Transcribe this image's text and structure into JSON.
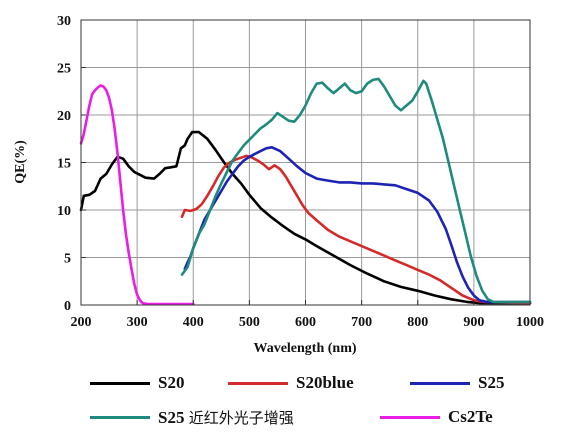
{
  "chart_data": {
    "type": "line",
    "title": "",
    "xlabel": "Wavelength (nm)",
    "ylabel": "QE(%)",
    "xlim": [
      200,
      1000
    ],
    "ylim": [
      0,
      30
    ],
    "x_ticks": [
      "200",
      "300",
      "400",
      "500",
      "600",
      "700",
      "800",
      "900",
      "1000"
    ],
    "y_ticks": [
      "0",
      "5",
      "10",
      "15",
      "20",
      "25",
      "30"
    ],
    "grid": true,
    "legend_position": "bottom",
    "series": [
      {
        "name": "S20",
        "legend_latin": "S20",
        "legend_cjk": "",
        "color": "#000000",
        "points": [
          [
            200,
            10.0
          ],
          [
            205,
            11.5
          ],
          [
            215,
            11.6
          ],
          [
            225,
            12.0
          ],
          [
            235,
            13.3
          ],
          [
            245,
            13.8
          ],
          [
            255,
            14.8
          ],
          [
            265,
            15.6
          ],
          [
            275,
            15.4
          ],
          [
            285,
            14.6
          ],
          [
            295,
            14.0
          ],
          [
            305,
            13.7
          ],
          [
            315,
            13.4
          ],
          [
            330,
            13.3
          ],
          [
            340,
            13.8
          ],
          [
            350,
            14.4
          ],
          [
            360,
            14.5
          ],
          [
            370,
            14.6
          ],
          [
            378,
            16.5
          ],
          [
            385,
            16.8
          ],
          [
            390,
            17.5
          ],
          [
            398,
            18.2
          ],
          [
            410,
            18.2
          ],
          [
            425,
            17.5
          ],
          [
            440,
            16.3
          ],
          [
            455,
            15.0
          ],
          [
            470,
            13.8
          ],
          [
            485,
            12.8
          ],
          [
            500,
            11.6
          ],
          [
            520,
            10.2
          ],
          [
            540,
            9.2
          ],
          [
            560,
            8.3
          ],
          [
            580,
            7.5
          ],
          [
            600,
            6.9
          ],
          [
            620,
            6.2
          ],
          [
            650,
            5.2
          ],
          [
            680,
            4.2
          ],
          [
            710,
            3.3
          ],
          [
            740,
            2.5
          ],
          [
            770,
            1.9
          ],
          [
            800,
            1.5
          ],
          [
            830,
            1.0
          ],
          [
            860,
            0.6
          ],
          [
            890,
            0.3
          ],
          [
            910,
            0.2
          ],
          [
            1000,
            0.2
          ]
        ]
      },
      {
        "name": "S20blue",
        "legend_latin": "S20blue",
        "legend_cjk": "",
        "color": "#d42a2a",
        "points": [
          [
            380,
            9.3
          ],
          [
            385,
            10.0
          ],
          [
            395,
            9.9
          ],
          [
            405,
            10.1
          ],
          [
            415,
            10.6
          ],
          [
            425,
            11.5
          ],
          [
            435,
            12.5
          ],
          [
            445,
            13.6
          ],
          [
            455,
            14.5
          ],
          [
            465,
            15.0
          ],
          [
            475,
            15.3
          ],
          [
            485,
            15.5
          ],
          [
            495,
            15.7
          ],
          [
            505,
            15.5
          ],
          [
            515,
            15.2
          ],
          [
            525,
            14.8
          ],
          [
            535,
            14.3
          ],
          [
            545,
            14.7
          ],
          [
            555,
            14.3
          ],
          [
            565,
            13.5
          ],
          [
            575,
            12.5
          ],
          [
            585,
            11.5
          ],
          [
            595,
            10.5
          ],
          [
            605,
            9.7
          ],
          [
            620,
            8.9
          ],
          [
            640,
            7.9
          ],
          [
            660,
            7.2
          ],
          [
            680,
            6.7
          ],
          [
            700,
            6.2
          ],
          [
            720,
            5.7
          ],
          [
            740,
            5.2
          ],
          [
            760,
            4.7
          ],
          [
            780,
            4.2
          ],
          [
            800,
            3.7
          ],
          [
            820,
            3.2
          ],
          [
            840,
            2.6
          ],
          [
            860,
            1.8
          ],
          [
            880,
            1.0
          ],
          [
            900,
            0.5
          ],
          [
            920,
            0.3
          ],
          [
            1000,
            0.2
          ]
        ]
      },
      {
        "name": "S25",
        "legend_latin": "S25",
        "legend_cjk": "",
        "color": "#1d24b4",
        "points": [
          [
            385,
            3.8
          ],
          [
            390,
            4.5
          ],
          [
            395,
            5.1
          ],
          [
            400,
            6.0
          ],
          [
            410,
            7.5
          ],
          [
            420,
            9.0
          ],
          [
            430,
            10.0
          ],
          [
            440,
            11.0
          ],
          [
            450,
            12.0
          ],
          [
            460,
            13.0
          ],
          [
            470,
            13.8
          ],
          [
            480,
            14.6
          ],
          [
            490,
            15.2
          ],
          [
            500,
            15.6
          ],
          [
            510,
            15.9
          ],
          [
            520,
            16.2
          ],
          [
            530,
            16.5
          ],
          [
            540,
            16.6
          ],
          [
            555,
            16.2
          ],
          [
            570,
            15.4
          ],
          [
            585,
            14.6
          ],
          [
            600,
            13.9
          ],
          [
            620,
            13.3
          ],
          [
            640,
            13.1
          ],
          [
            660,
            12.9
          ],
          [
            680,
            12.9
          ],
          [
            700,
            12.8
          ],
          [
            720,
            12.8
          ],
          [
            740,
            12.7
          ],
          [
            760,
            12.6
          ],
          [
            780,
            12.2
          ],
          [
            800,
            11.8
          ],
          [
            820,
            11.0
          ],
          [
            835,
            9.8
          ],
          [
            850,
            8.0
          ],
          [
            860,
            6.3
          ],
          [
            870,
            4.5
          ],
          [
            880,
            3.0
          ],
          [
            890,
            1.8
          ],
          [
            900,
            1.0
          ],
          [
            910,
            0.5
          ],
          [
            925,
            0.3
          ],
          [
            1000,
            0.3
          ]
        ]
      },
      {
        "name": "S25 NIR enhanced",
        "legend_latin": "S25 ",
        "legend_cjk": "近红外光子增强",
        "color": "#1f8a7e",
        "points": [
          [
            380,
            3.2
          ],
          [
            390,
            4.0
          ],
          [
            400,
            6.0
          ],
          [
            410,
            7.5
          ],
          [
            420,
            8.5
          ],
          [
            430,
            10.0
          ],
          [
            440,
            11.5
          ],
          [
            450,
            12.8
          ],
          [
            460,
            14.0
          ],
          [
            470,
            15.2
          ],
          [
            480,
            16.0
          ],
          [
            490,
            16.8
          ],
          [
            500,
            17.4
          ],
          [
            510,
            18.0
          ],
          [
            520,
            18.6
          ],
          [
            530,
            19.0
          ],
          [
            540,
            19.5
          ],
          [
            550,
            20.2
          ],
          [
            560,
            19.8
          ],
          [
            570,
            19.4
          ],
          [
            580,
            19.3
          ],
          [
            590,
            20.0
          ],
          [
            600,
            21.0
          ],
          [
            610,
            22.3
          ],
          [
            620,
            23.3
          ],
          [
            630,
            23.4
          ],
          [
            640,
            22.8
          ],
          [
            650,
            22.3
          ],
          [
            660,
            22.8
          ],
          [
            670,
            23.3
          ],
          [
            680,
            22.6
          ],
          [
            690,
            22.3
          ],
          [
            700,
            22.5
          ],
          [
            710,
            23.3
          ],
          [
            720,
            23.7
          ],
          [
            730,
            23.8
          ],
          [
            740,
            23.0
          ],
          [
            750,
            22.0
          ],
          [
            760,
            21.0
          ],
          [
            770,
            20.5
          ],
          [
            780,
            21.0
          ],
          [
            790,
            21.5
          ],
          [
            800,
            22.5
          ],
          [
            810,
            23.6
          ],
          [
            815,
            23.3
          ],
          [
            825,
            21.5
          ],
          [
            835,
            19.5
          ],
          [
            845,
            17.5
          ],
          [
            855,
            15.0
          ],
          [
            865,
            12.5
          ],
          [
            875,
            10.0
          ],
          [
            885,
            7.5
          ],
          [
            895,
            5.0
          ],
          [
            905,
            3.0
          ],
          [
            915,
            1.5
          ],
          [
            925,
            0.6
          ],
          [
            935,
            0.3
          ],
          [
            1000,
            0.3
          ]
        ]
      },
      {
        "name": "Cs2Te",
        "legend_latin": "Cs2Te",
        "legend_cjk": "",
        "color": "#e81ee6",
        "points": [
          [
            200,
            17.0
          ],
          [
            205,
            18.0
          ],
          [
            210,
            19.5
          ],
          [
            215,
            21.0
          ],
          [
            220,
            22.2
          ],
          [
            225,
            22.6
          ],
          [
            230,
            22.9
          ],
          [
            235,
            23.1
          ],
          [
            240,
            23.0
          ],
          [
            245,
            22.6
          ],
          [
            250,
            21.8
          ],
          [
            255,
            20.5
          ],
          [
            260,
            18.5
          ],
          [
            265,
            16.0
          ],
          [
            270,
            13.0
          ],
          [
            275,
            10.0
          ],
          [
            280,
            7.5
          ],
          [
            285,
            5.5
          ],
          [
            290,
            3.8
          ],
          [
            295,
            2.2
          ],
          [
            300,
            1.1
          ],
          [
            305,
            0.5
          ],
          [
            310,
            0.2
          ],
          [
            320,
            0.1
          ],
          [
            400,
            0.1
          ]
        ]
      }
    ]
  }
}
